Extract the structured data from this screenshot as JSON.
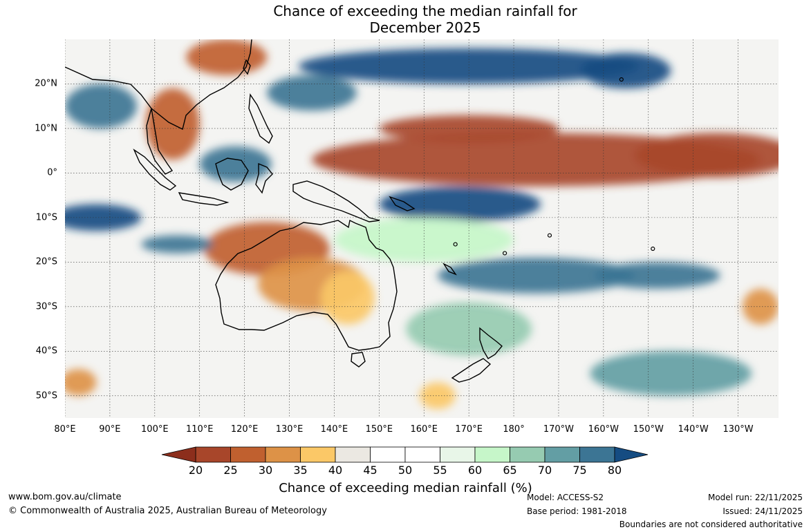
{
  "title": {
    "line1": "Chance of exceeding the median rainfall for",
    "line2": "December 2025"
  },
  "map": {
    "lat_labels": [
      {
        "lat": 20,
        "label": "20°N"
      },
      {
        "lat": 10,
        "label": "10°N"
      },
      {
        "lat": 0,
        "label": "0°"
      },
      {
        "lat": -10,
        "label": "10°S"
      },
      {
        "lat": -20,
        "label": "20°S"
      },
      {
        "lat": -30,
        "label": "30°S"
      },
      {
        "lat": -40,
        "label": "40°S"
      },
      {
        "lat": -50,
        "label": "50°S"
      }
    ],
    "lon_labels": [
      {
        "lon": 80,
        "label": "80°E"
      },
      {
        "lon": 90,
        "label": "90°E"
      },
      {
        "lon": 100,
        "label": "100°E"
      },
      {
        "lon": 110,
        "label": "110°E"
      },
      {
        "lon": 120,
        "label": "120°E"
      },
      {
        "lon": 130,
        "label": "130°E"
      },
      {
        "lon": 140,
        "label": "140°E"
      },
      {
        "lon": 150,
        "label": "150°E"
      },
      {
        "lon": 160,
        "label": "160°E"
      },
      {
        "lon": 170,
        "label": "170°E"
      },
      {
        "lon": 180,
        "label": "180°"
      },
      {
        "lon": 190,
        "label": "170°W"
      },
      {
        "lon": 200,
        "label": "160°W"
      },
      {
        "lon": 210,
        "label": "150°W"
      },
      {
        "lon": 220,
        "label": "140°W"
      },
      {
        "lon": 230,
        "label": "130°W"
      }
    ],
    "extent": {
      "lon_min": 80,
      "lon_max": 239,
      "lat_min": -55,
      "lat_max": 30
    },
    "regions": [
      {
        "name": "central-pacific-dry-band",
        "lon": 185,
        "lat": 3,
        "rx": 50,
        "ry": 6,
        "class": 20
      },
      {
        "name": "north-pacific-dry-band",
        "lon": 170,
        "lat": 10,
        "rx": 20,
        "ry": 3,
        "class": 20
      },
      {
        "name": "east-dry-band",
        "lon": 225,
        "lat": 4,
        "rx": 18,
        "ry": 5,
        "class": 20
      },
      {
        "name": "indochina-dry",
        "lon": 104,
        "lat": 11,
        "rx": 6,
        "ry": 8,
        "class": 25
      },
      {
        "name": "south-china-dry",
        "lon": 116,
        "lat": 26,
        "rx": 9,
        "ry": 4,
        "class": 25
      },
      {
        "name": "north-australia-dry",
        "lon": 125,
        "lat": -17,
        "rx": 14,
        "ry": 6,
        "class": 25
      },
      {
        "name": "inland-australia-dry",
        "lon": 135,
        "lat": -25,
        "rx": 12,
        "ry": 6,
        "class": 30
      },
      {
        "name": "east-australia-dry",
        "lon": 143,
        "lat": -28,
        "rx": 6,
        "ry": 6,
        "class": 35
      },
      {
        "name": "tasman-dry",
        "lon": 163,
        "lat": -50,
        "rx": 4,
        "ry": 3,
        "class": 35
      },
      {
        "name": "southwest-dry",
        "lon": 83,
        "lat": -47,
        "rx": 4,
        "ry": 3,
        "class": 30
      },
      {
        "name": "east-subtropics-dry",
        "lon": 235,
        "lat": -30,
        "rx": 4,
        "ry": 4,
        "class": 30
      },
      {
        "name": "north-pacific-wet-band",
        "lon": 170,
        "lat": 24,
        "rx": 38,
        "ry": 4,
        "class": 80
      },
      {
        "name": "northeast-wet",
        "lon": 205,
        "lat": 23,
        "rx": 10,
        "ry": 4,
        "class": 80
      },
      {
        "name": "philippine-sea-wet",
        "lon": 135,
        "lat": 18,
        "rx": 10,
        "ry": 4,
        "class": 75
      },
      {
        "name": "bay-of-bengal-wet",
        "lon": 88,
        "lat": 15,
        "rx": 8,
        "ry": 5,
        "class": 75
      },
      {
        "name": "indonesia-wet",
        "lon": 118,
        "lat": 2,
        "rx": 8,
        "ry": 4,
        "class": 75
      },
      {
        "name": "indian-ocean-wet",
        "lon": 87,
        "lat": -10,
        "rx": 10,
        "ry": 3,
        "class": 80
      },
      {
        "name": "indian-ocean-wet-2",
        "lon": 105,
        "lat": -16,
        "rx": 8,
        "ry": 2,
        "class": 75
      },
      {
        "name": "melanesia-wet",
        "lon": 168,
        "lat": -7,
        "rx": 18,
        "ry": 4,
        "class": 80
      },
      {
        "name": "south-pacific-wet",
        "lon": 185,
        "lat": -23,
        "rx": 22,
        "ry": 4,
        "class": 75
      },
      {
        "name": "spcz-wet",
        "lon": 212,
        "lat": -23,
        "rx": 14,
        "ry": 3,
        "class": 75
      },
      {
        "name": "southern-ocean-wet",
        "lon": 215,
        "lat": -45,
        "rx": 18,
        "ry": 5,
        "class": 70
      },
      {
        "name": "central-south-green",
        "lon": 170,
        "lat": -35,
        "rx": 14,
        "ry": 6,
        "class": 65
      },
      {
        "name": "equatorial-green",
        "lon": 160,
        "lat": -15,
        "rx": 20,
        "ry": 5,
        "class": 60
      }
    ],
    "islands": [
      {
        "name": "hawaii",
        "lon": 204,
        "lat": 21
      },
      {
        "name": "fiji",
        "lon": 178,
        "lat": -18
      },
      {
        "name": "samoa",
        "lon": 188,
        "lat": -14
      },
      {
        "name": "vanuatu",
        "lon": 167,
        "lat": -16
      },
      {
        "name": "tahiti",
        "lon": 211,
        "lat": -17
      }
    ]
  },
  "colorbar": {
    "label": "Chance of exceeding median rainfall (%)",
    "ticks": [
      "20",
      "25",
      "30",
      "35",
      "40",
      "45",
      "50",
      "55",
      "60",
      "65",
      "70",
      "75",
      "80"
    ],
    "colors": {
      "below20": "#8c2e1c",
      "20": "#a8462a",
      "25": "#c0602f",
      "30": "#dd9247",
      "35": "#fbc867",
      "40": "#ebe8e2",
      "45": "#ffffff",
      "50": "#ffffff",
      "55": "#e8f6e8",
      "60": "#c6f6c9",
      "65": "#96cbb1",
      "70": "#639ea4",
      "75": "#3c7594",
      "above80": "#154c82"
    }
  },
  "footer": {
    "website": "www.bom.gov.au/climate",
    "copyright": "© Commonwealth of Australia 2025, Australian Bureau of Meteorology",
    "model": "Model: ACCESS-S2",
    "base_period": "Base period: 1981-2018",
    "model_run": "Model run: 22/11/2025",
    "issued": "Issued: 24/11/2025",
    "disclaimer": "Boundaries are not considered authoritative"
  }
}
